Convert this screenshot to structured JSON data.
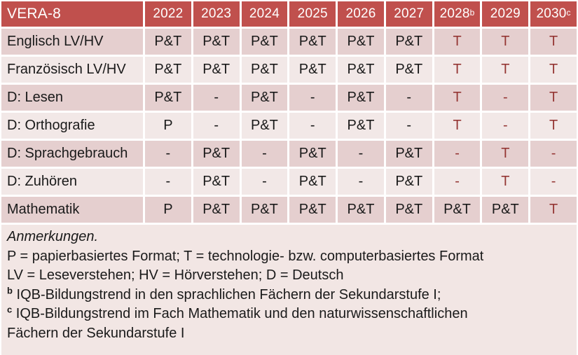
{
  "title": "VERA-8",
  "colors": {
    "header_bg": "#C0504D",
    "header_text": "#FFFFFF",
    "row_band_dark": "#E5CFCF",
    "row_band_light": "#F2E8E7",
    "notes_bg": "#F2E6E4",
    "accent_red_text": "#953735",
    "body_text": "#1A1A1A",
    "grid_lines": "#FFFFFF"
  },
  "table": {
    "header": {
      "title": "VERA-8",
      "years": [
        {
          "label": "2022",
          "sup": ""
        },
        {
          "label": "2023",
          "sup": ""
        },
        {
          "label": "2024",
          "sup": ""
        },
        {
          "label": "2025",
          "sup": ""
        },
        {
          "label": "2026",
          "sup": ""
        },
        {
          "label": "2027",
          "sup": ""
        },
        {
          "label": "2028",
          "sup": "b"
        },
        {
          "label": "2029",
          "sup": ""
        },
        {
          "label": "2030",
          "sup": "c"
        }
      ]
    },
    "rows": [
      {
        "label": "Englisch LV/HV",
        "cells": [
          {
            "text": "P&T",
            "red": false
          },
          {
            "text": "P&T",
            "red": false
          },
          {
            "text": "P&T",
            "red": false
          },
          {
            "text": "P&T",
            "red": false
          },
          {
            "text": "P&T",
            "red": false
          },
          {
            "text": "P&T",
            "red": false
          },
          {
            "text": "T",
            "red": true
          },
          {
            "text": "T",
            "red": true
          },
          {
            "text": "T",
            "red": true
          }
        ]
      },
      {
        "label": "Französisch LV/HV",
        "cells": [
          {
            "text": "P&T",
            "red": false
          },
          {
            "text": "P&T",
            "red": false
          },
          {
            "text": "P&T",
            "red": false
          },
          {
            "text": "P&T",
            "red": false
          },
          {
            "text": "P&T",
            "red": false
          },
          {
            "text": "P&T",
            "red": false
          },
          {
            "text": "T",
            "red": true
          },
          {
            "text": "T",
            "red": true
          },
          {
            "text": "T",
            "red": true
          }
        ]
      },
      {
        "label": "D: Lesen",
        "cells": [
          {
            "text": "P&T",
            "red": false
          },
          {
            "text": "-",
            "red": false
          },
          {
            "text": "P&T",
            "red": false
          },
          {
            "text": "-",
            "red": false
          },
          {
            "text": "P&T",
            "red": false
          },
          {
            "text": "-",
            "red": false
          },
          {
            "text": "T",
            "red": true
          },
          {
            "text": "-",
            "red": true
          },
          {
            "text": "T",
            "red": true
          }
        ]
      },
      {
        "label": "D: Orthografie",
        "cells": [
          {
            "text": "P",
            "red": false
          },
          {
            "text": "-",
            "red": false
          },
          {
            "text": "P&T",
            "red": false
          },
          {
            "text": "-",
            "red": false
          },
          {
            "text": "P&T",
            "red": false
          },
          {
            "text": "-",
            "red": false
          },
          {
            "text": "T",
            "red": true
          },
          {
            "text": "-",
            "red": true
          },
          {
            "text": "T",
            "red": true
          }
        ]
      },
      {
        "label": "D: Sprachgebrauch",
        "cells": [
          {
            "text": "-",
            "red": false
          },
          {
            "text": "P&T",
            "red": false
          },
          {
            "text": "-",
            "red": false
          },
          {
            "text": "P&T",
            "red": false
          },
          {
            "text": "-",
            "red": false
          },
          {
            "text": "P&T",
            "red": false
          },
          {
            "text": "-",
            "red": true
          },
          {
            "text": "T",
            "red": true
          },
          {
            "text": "-",
            "red": true
          }
        ]
      },
      {
        "label": "D: Zuhören",
        "cells": [
          {
            "text": "-",
            "red": false
          },
          {
            "text": "P&T",
            "red": false
          },
          {
            "text": "-",
            "red": false
          },
          {
            "text": "P&T",
            "red": false
          },
          {
            "text": "-",
            "red": false
          },
          {
            "text": "P&T",
            "red": false
          },
          {
            "text": "-",
            "red": true
          },
          {
            "text": "T",
            "red": true
          },
          {
            "text": "-",
            "red": true
          }
        ]
      },
      {
        "label": "Mathematik",
        "cells": [
          {
            "text": "P",
            "red": false
          },
          {
            "text": "P&T",
            "red": false
          },
          {
            "text": "P&T",
            "red": false
          },
          {
            "text": "P&T",
            "red": false
          },
          {
            "text": "P&T",
            "red": false
          },
          {
            "text": "P&T",
            "red": false
          },
          {
            "text": "P&T",
            "red": false
          },
          {
            "text": "P&T",
            "red": false
          },
          {
            "text": "T",
            "red": true
          }
        ]
      }
    ]
  },
  "notes": {
    "heading": "Anmerkungen.",
    "line_formats": "P = papierbasiertes Format; T = technologie- bzw. computerbasiertes Format",
    "line_abbrev": "LV = Leseverstehen; HV = Hörverstehen; D = Deutsch",
    "note_b_sup": "b",
    "note_b_text": "IQB-Bildungstrend in den sprachlichen Fächern der Sekundarstufe I;",
    "note_c_sup": "c",
    "note_c_text": "IQB-Bildungstrend im Fach Mathematik und den naturwissenschaftlichen Fächern der Sekundarstufe I"
  }
}
